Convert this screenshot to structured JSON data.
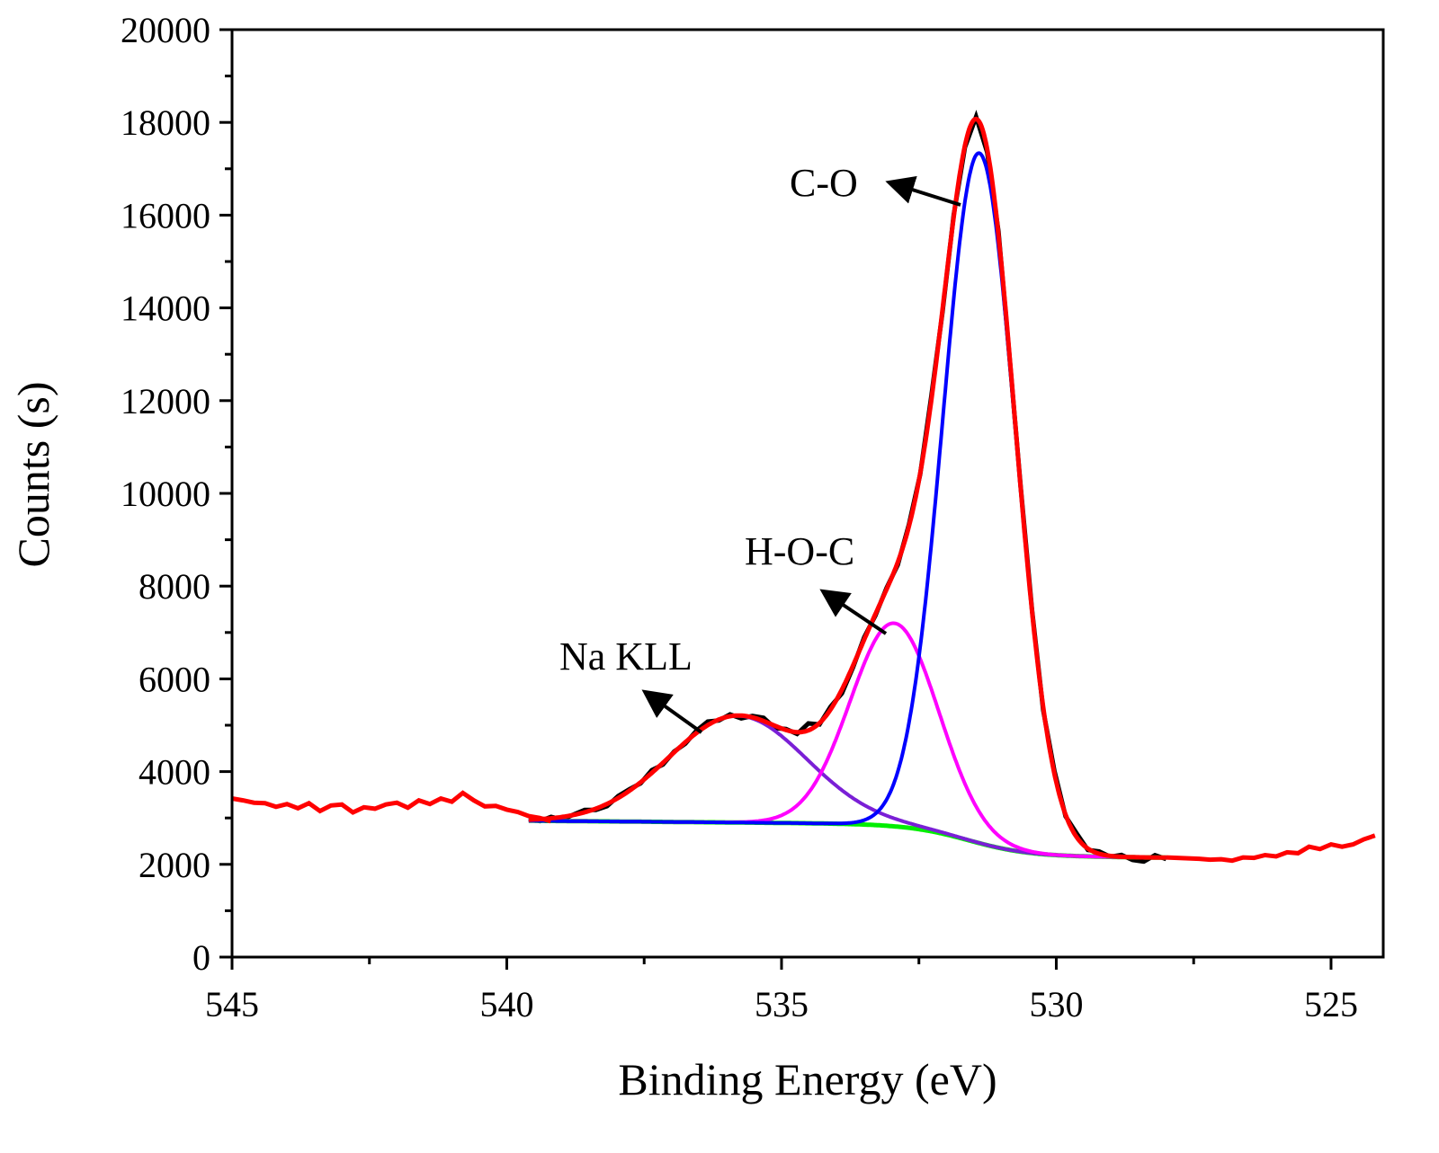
{
  "chart_data": {
    "type": "line",
    "xlabel": "Binding Energy (eV)",
    "ylabel": "Counts (s)",
    "xlim": [
      545,
      524.05
    ],
    "ylim": [
      0,
      20000
    ],
    "x_ticks": [
      545,
      540,
      535,
      530,
      525
    ],
    "y_ticks": [
      0,
      2000,
      4000,
      6000,
      8000,
      10000,
      12000,
      14000,
      16000,
      18000,
      20000
    ],
    "fit_range": [
      539.6,
      528.0
    ],
    "background": {
      "low": 2180,
      "step": 680,
      "center": 531.6,
      "width": 0.55,
      "slope": 10
    },
    "peaks": [
      {
        "name": "Na KLL",
        "center": 535.8,
        "amplitude": 2300,
        "sigma": 1.25,
        "color": "#7a1fd6"
      },
      {
        "name": "H-O-C",
        "center": 532.95,
        "amplitude": 4380,
        "sigma": 0.8,
        "color": "#ff00ff"
      },
      {
        "name": "C-O",
        "center": 531.4,
        "amplitude": 14880,
        "sigma": 0.66,
        "color": "#0000ff"
      }
    ],
    "raw_left": {
      "x_start": 545,
      "x_step": -0.2,
      "counts": [
        3420,
        3380,
        3330,
        3320,
        3240,
        3300,
        3210,
        3320,
        3150,
        3270,
        3290,
        3120,
        3230,
        3200,
        3290,
        3330,
        3220,
        3380,
        3300,
        3420,
        3350,
        3540,
        3380,
        3250,
        3260,
        3180,
        3130,
        3040,
        3000,
        2930
      ]
    },
    "raw_right": {
      "x_start": 528.0,
      "x_step": -0.2,
      "counts": [
        2150,
        2140,
        2130,
        2120,
        2100,
        2110,
        2080,
        2150,
        2140,
        2200,
        2170,
        2260,
        2240,
        2380,
        2330,
        2430,
        2380,
        2430,
        2540,
        2620
      ]
    },
    "raw_fit_residuals": [
      20,
      -40,
      30,
      -60,
      10,
      50,
      -30,
      -50,
      40,
      30,
      -20,
      60,
      -40,
      20,
      -30,
      50,
      80,
      -20,
      40,
      -60,
      30,
      70,
      -50,
      20,
      -40,
      150,
      -30,
      60,
      -80,
      -40,
      50,
      -30,
      30,
      -60,
      40,
      -20,
      90,
      -50,
      40,
      -30,
      50,
      -60,
      70,
      -40,
      30,
      20,
      -70,
      60,
      -40,
      80,
      -30,
      50,
      -20,
      40,
      -60,
      -90,
      50,
      -30
    ],
    "annotations": [
      {
        "text": "C-O"
      },
      {
        "text": "H-O-C"
      },
      {
        "text": "Na KLL"
      }
    ],
    "colors": {
      "envelope": "#ff0000",
      "raw": "#000000",
      "background": "#00ee00"
    }
  }
}
